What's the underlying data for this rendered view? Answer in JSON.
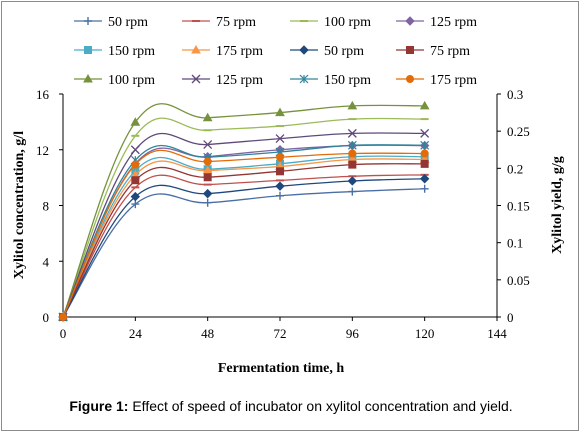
{
  "chart_data": {
    "type": "line",
    "title": "",
    "xlabel": "Fermentation time, h",
    "ylabel_left": "Xylitol concentration, g/l",
    "ylabel_right": "Xylitol yield, g/g",
    "xlim": [
      0,
      144
    ],
    "ylim_left": [
      0,
      16
    ],
    "ylim_right": [
      0,
      0.3
    ],
    "xticks": [
      "0",
      "24",
      "48",
      "72",
      "96",
      "120",
      "144"
    ],
    "yticks_left": [
      "0",
      "4",
      "8",
      "12",
      "16"
    ],
    "yticks_right": [
      "0",
      "0.05",
      "0.1",
      "0.15",
      "0.2",
      "0.25",
      "0.3"
    ],
    "grid": false,
    "legend_position": "top",
    "x": [
      0,
      24,
      48,
      72,
      96,
      120
    ],
    "series": [
      {
        "name": "50 rpm",
        "axis": "left",
        "marker": "plus",
        "color": "#4a6fa5",
        "values": [
          0,
          8.1,
          8.2,
          8.7,
          9.0,
          9.2
        ]
      },
      {
        "name": "75 rpm",
        "axis": "left",
        "marker": "dash",
        "color": "#c0504d",
        "values": [
          0,
          9.3,
          9.5,
          9.8,
          10.1,
          10.2
        ]
      },
      {
        "name": "100 rpm",
        "axis": "left",
        "marker": "dash",
        "color": "#9bbb59",
        "values": [
          0,
          13.0,
          13.4,
          13.7,
          14.2,
          14.2
        ]
      },
      {
        "name": "125 rpm",
        "axis": "left",
        "marker": "diamond",
        "color": "#8064a2",
        "values": [
          0,
          11.0,
          11.5,
          12.0,
          12.3,
          12.3
        ]
      },
      {
        "name": "150 rpm",
        "axis": "left",
        "marker": "square",
        "color": "#4bacc6",
        "values": [
          0,
          10.5,
          10.6,
          11.0,
          11.5,
          11.5
        ]
      },
      {
        "name": "175 rpm",
        "axis": "left",
        "marker": "triangle",
        "color": "#f79646",
        "values": [
          0,
          10.2,
          10.5,
          10.8,
          11.3,
          11.3
        ]
      },
      {
        "name": "50 rpm",
        "axis": "right",
        "marker": "diamond",
        "color": "#1f497d",
        "values": [
          0,
          0.162,
          0.166,
          0.176,
          0.183,
          0.186
        ]
      },
      {
        "name": "75 rpm",
        "axis": "right",
        "marker": "square",
        "color": "#943634",
        "values": [
          0,
          0.184,
          0.188,
          0.196,
          0.205,
          0.206
        ]
      },
      {
        "name": "100 rpm",
        "axis": "right",
        "marker": "triangle",
        "color": "#76923c",
        "values": [
          0,
          0.262,
          0.268,
          0.275,
          0.284,
          0.284
        ]
      },
      {
        "name": "125 rpm",
        "axis": "right",
        "marker": "x",
        "color": "#5f497a",
        "values": [
          0,
          0.225,
          0.232,
          0.24,
          0.247,
          0.247
        ]
      },
      {
        "name": "150 rpm",
        "axis": "right",
        "marker": "asterisk",
        "color": "#31849b",
        "values": [
          0,
          0.211,
          0.215,
          0.222,
          0.231,
          0.231
        ]
      },
      {
        "name": "175 rpm",
        "axis": "right",
        "marker": "circle",
        "color": "#e36c09",
        "values": [
          0,
          0.205,
          0.209,
          0.215,
          0.22,
          0.22
        ]
      }
    ]
  },
  "caption": {
    "label": "Figure 1:",
    "text": " Effect of speed of incubator on xylitol concentration and yield."
  }
}
